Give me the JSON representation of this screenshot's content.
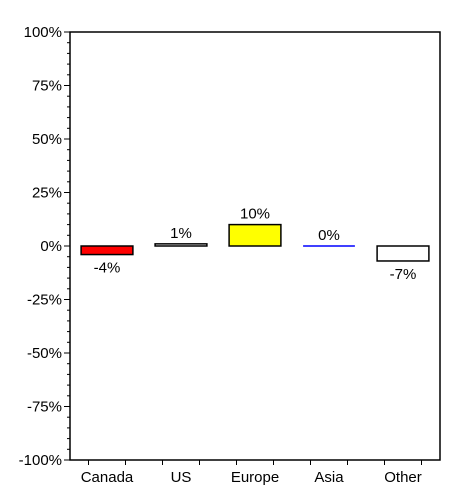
{
  "chart_data": {
    "type": "bar",
    "title": "",
    "xlabel": "",
    "ylabel": "",
    "ylim": [
      -100,
      100
    ],
    "y_ticks": [
      100,
      75,
      50,
      25,
      0,
      -25,
      -50,
      -75,
      -100
    ],
    "y_tick_labels": [
      "100%",
      "75%",
      "50%",
      "25%",
      "0%",
      "-25%",
      "-50%",
      "-75%",
      "-100%"
    ],
    "grid": false,
    "categories": [
      "Canada",
      "US",
      "Europe",
      "Asia",
      "Other"
    ],
    "values": [
      -4,
      1,
      10,
      0,
      -7
    ],
    "data_labels": [
      "-4%",
      "1%",
      "10%",
      "0%",
      "-7%"
    ],
    "colors": [
      "#ff0000",
      "#ffffff",
      "#ffff00",
      "#0000ff",
      "#ffffff"
    ]
  }
}
